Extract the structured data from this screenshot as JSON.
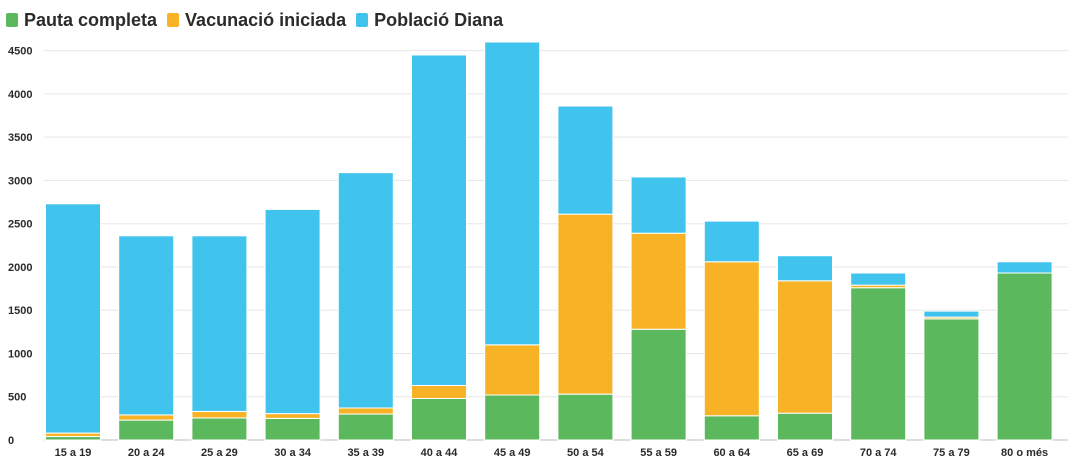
{
  "chart_data": {
    "type": "bar",
    "stacked": true,
    "categories": [
      "15 a 19",
      "20 a 24",
      "25 a 29",
      "30 a 34",
      "35 a 39",
      "40 a 44",
      "45 a 49",
      "50 a 54",
      "55 a 59",
      "60 a 64",
      "65 a 69",
      "70 a 74",
      "75 a 79",
      "80 o més"
    ],
    "series": [
      {
        "name": "Pauta completa",
        "color": "#5cb85c",
        "values": [
          40,
          230,
          255,
          250,
          300,
          480,
          520,
          530,
          1280,
          280,
          310,
          1760,
          1400,
          1930
        ]
      },
      {
        "name": "Vacunació iniciada",
        "color": "#f7b226",
        "values": [
          40,
          60,
          75,
          55,
          70,
          150,
          580,
          2080,
          1110,
          1780,
          1530,
          30,
          20,
          0
        ]
      },
      {
        "name": "Població Diana",
        "color": "#40c4ee",
        "values": [
          2650,
          2070,
          2030,
          2360,
          2720,
          3820,
          3500,
          1250,
          650,
          470,
          290,
          140,
          70,
          130
        ]
      }
    ],
    "y_ticks": [
      0,
      500,
      1000,
      1500,
      2000,
      2500,
      3000,
      3500,
      4000,
      4500
    ],
    "ylim": [
      0,
      4600
    ],
    "grid": true,
    "legend_position": "top-left"
  }
}
